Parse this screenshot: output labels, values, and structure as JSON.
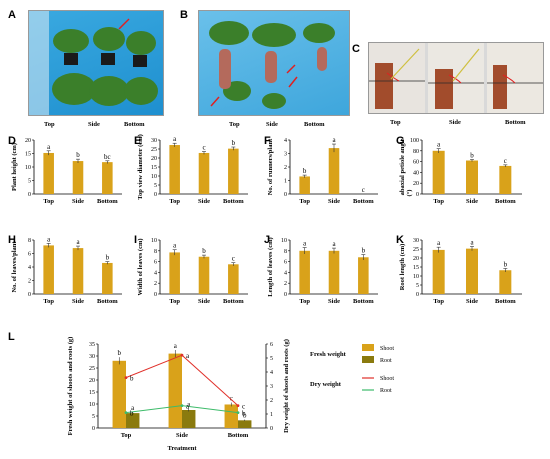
{
  "photo_labels": {
    "A": [
      "Top",
      "Side",
      "Bottom"
    ],
    "B": [
      "Top",
      "Side",
      "Bottom"
    ],
    "C": [
      "Top",
      "Side",
      "Bottom"
    ]
  },
  "colors": {
    "bar": "#d9a21a",
    "bar_dark": "#8a7a0e",
    "shoot_dry": "#e0302a",
    "root_dry": "#3dbb6a",
    "photo_bg_a": "#2a9fd8",
    "photo_bg_b": "#5fb8e6"
  },
  "chart_data": [
    {
      "panel": "D",
      "type": "bar",
      "categories": [
        "Top",
        "Side",
        "Bottom"
      ],
      "values": [
        15.2,
        12.2,
        11.8
      ],
      "errors": [
        0.8,
        0.7,
        0.5
      ],
      "letters": [
        "a",
        "b",
        "bc"
      ],
      "ylabel": "Plant height (cm)",
      "ylim": [
        0,
        20
      ],
      "ticks": [
        0,
        5,
        10,
        15,
        20
      ]
    },
    {
      "panel": "E",
      "type": "bar",
      "categories": [
        "Top",
        "Side",
        "Bottom"
      ],
      "values": [
        27.2,
        22.8,
        25.2
      ],
      "errors": [
        1.0,
        0.8,
        0.9
      ],
      "letters": [
        "a",
        "c",
        "b"
      ],
      "ylabel": "Top view diameter (cm)",
      "ylim": [
        0,
        30
      ],
      "ticks": [
        0,
        5,
        10,
        15,
        20,
        25,
        30
      ]
    },
    {
      "panel": "F",
      "type": "bar",
      "categories": [
        "Top",
        "Side",
        "Bottom"
      ],
      "values": [
        1.3,
        3.4,
        0
      ],
      "errors": [
        0.1,
        0.3,
        0
      ],
      "letters": [
        "b",
        "a",
        "c"
      ],
      "ylabel": "No. of runners/plant",
      "ylim": [
        0,
        4
      ],
      "ticks": [
        0,
        1,
        2,
        3,
        4
      ]
    },
    {
      "panel": "G",
      "type": "bar",
      "categories": [
        "Top",
        "Side",
        "Bottom"
      ],
      "values": [
        80,
        62,
        52
      ],
      "errors": [
        4,
        2,
        2
      ],
      "letters": [
        "a",
        "b",
        "c"
      ],
      "ylabel": "abaxial petiole angle",
      "ylabel_unit": "(°)",
      "ylim": [
        0,
        100
      ],
      "ticks": [
        0,
        20,
        40,
        60,
        80,
        100
      ]
    },
    {
      "panel": "H",
      "type": "bar",
      "categories": [
        "Top",
        "Side",
        "Bottom"
      ],
      "values": [
        7.2,
        6.8,
        4.6
      ],
      "errors": [
        0.3,
        0.3,
        0.2
      ],
      "letters": [
        "a",
        "a",
        "b"
      ],
      "ylabel": "No. of leaves/plant",
      "ylim": [
        0,
        8
      ],
      "ticks": [
        0,
        2,
        4,
        6,
        8
      ]
    },
    {
      "panel": "I",
      "type": "bar",
      "categories": [
        "Top",
        "Side",
        "Bottom"
      ],
      "values": [
        7.7,
        6.9,
        5.5
      ],
      "errors": [
        0.5,
        0.3,
        0.3
      ],
      "letters": [
        "a",
        "b",
        "c"
      ],
      "ylabel": "Width of leaves (cm)",
      "ylim": [
        0,
        10
      ],
      "ticks": [
        0,
        2,
        4,
        6,
        8,
        10
      ]
    },
    {
      "panel": "J",
      "type": "bar",
      "categories": [
        "Top",
        "Side",
        "Bottom"
      ],
      "values": [
        8.0,
        8.0,
        6.8
      ],
      "errors": [
        0.6,
        0.5,
        0.5
      ],
      "letters": [
        "a",
        "a",
        "b"
      ],
      "ylabel": "Length of leaves (cm)",
      "ylim": [
        0,
        10
      ],
      "ticks": [
        0,
        2,
        4,
        6,
        8,
        10
      ]
    },
    {
      "panel": "K",
      "type": "bar",
      "categories": [
        "Top",
        "Side",
        "Bottom"
      ],
      "values": [
        24.5,
        25.2,
        13.2
      ],
      "errors": [
        1.5,
        1.2,
        1.0
      ],
      "letters": [
        "a",
        "a",
        "b"
      ],
      "ylabel": "Root length (cm)",
      "ylim": [
        0,
        30
      ],
      "ticks": [
        0,
        5,
        10,
        15,
        20,
        25,
        30
      ]
    },
    {
      "panel": "L",
      "type": "bar",
      "categories": [
        "Top",
        "Side",
        "Bottom"
      ],
      "xlabel": "Treatment",
      "ylabel": "Fresh weight of shoots and roots (g)",
      "ylabel_right": "Dry weight of shoots and roots (g)",
      "ylim": [
        0,
        35
      ],
      "ticks": [
        0,
        5,
        10,
        15,
        20,
        25,
        30,
        35
      ],
      "ylim_right": [
        0,
        6
      ],
      "ticks_right": [
        0,
        1,
        2,
        3,
        4,
        5,
        6
      ],
      "legend": {
        "fresh_title": "Fresh weight",
        "dry_title": "Dry weight"
      },
      "series": [
        {
          "name": "Shoot",
          "kind": "fresh",
          "values": [
            28.0,
            31.0,
            9.8
          ],
          "errors": [
            1.5,
            1.5,
            0.8
          ],
          "letters": [
            "b",
            "a",
            "c"
          ]
        },
        {
          "name": "Root",
          "kind": "fresh",
          "values": [
            6.2,
            7.5,
            3.2
          ],
          "errors": [
            0.5,
            0.6,
            0.3
          ],
          "letters": [
            "a",
            "a",
            "b"
          ]
        },
        {
          "name": "Shoot",
          "kind": "dry",
          "values": [
            3.6,
            5.2,
            1.6
          ],
          "letters": [
            "b",
            "a",
            "c"
          ]
        },
        {
          "name": "Root",
          "kind": "dry",
          "values": [
            1.1,
            1.6,
            1.1
          ],
          "letters": [
            "b",
            "a",
            "b"
          ]
        }
      ]
    }
  ]
}
